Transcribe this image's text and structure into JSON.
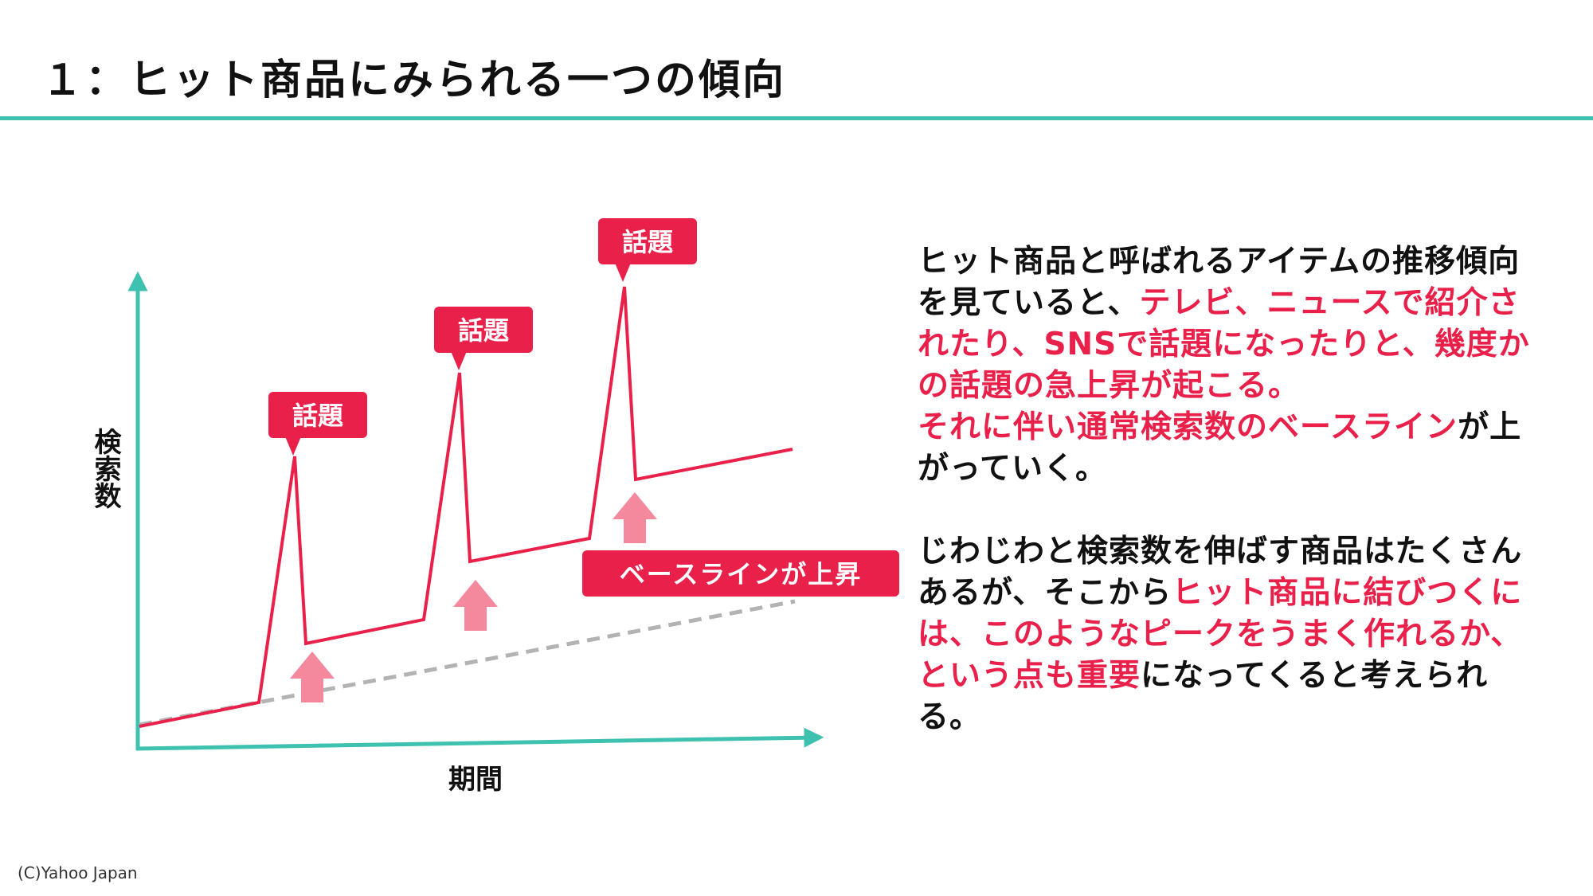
{
  "title": "１：ヒット商品にみられる一つの傾向",
  "colors": {
    "accent_teal": "#3fc1b0",
    "highlight_red": "#e8204a",
    "arrow_pink": "#f4889c",
    "baseline_gray": "#b3b3b3"
  },
  "diagram": {
    "y_axis_label": "検索数",
    "x_axis_label": "期間",
    "peak_label": "話題",
    "baseline_label": "ベースラインが上昇"
  },
  "explanation": {
    "p1": [
      {
        "t": "ヒット商品と呼ばれるアイテムの推移傾向を見ていると、",
        "hl": false
      },
      {
        "t": "テレビ、ニュースで紹介されたり、SNSで話題になったりと、幾度かの話題の急上昇が起こる。",
        "hl": true
      },
      {
        "t": "それに伴い通常検索数のベースライン",
        "hl": true
      },
      {
        "t": "が上がっていく。",
        "hl": false
      }
    ],
    "p2": [
      {
        "t": "じわじわと検索数を伸ばす商品はたくさんあるが、そこから",
        "hl": false
      },
      {
        "t": "ヒット商品に結びつくには、このようなピークをうまく作れるか、という点も重要",
        "hl": true
      },
      {
        "t": "になってくると考えられる。",
        "hl": false
      }
    ]
  },
  "copyright": "(C)Yahoo Japan"
}
